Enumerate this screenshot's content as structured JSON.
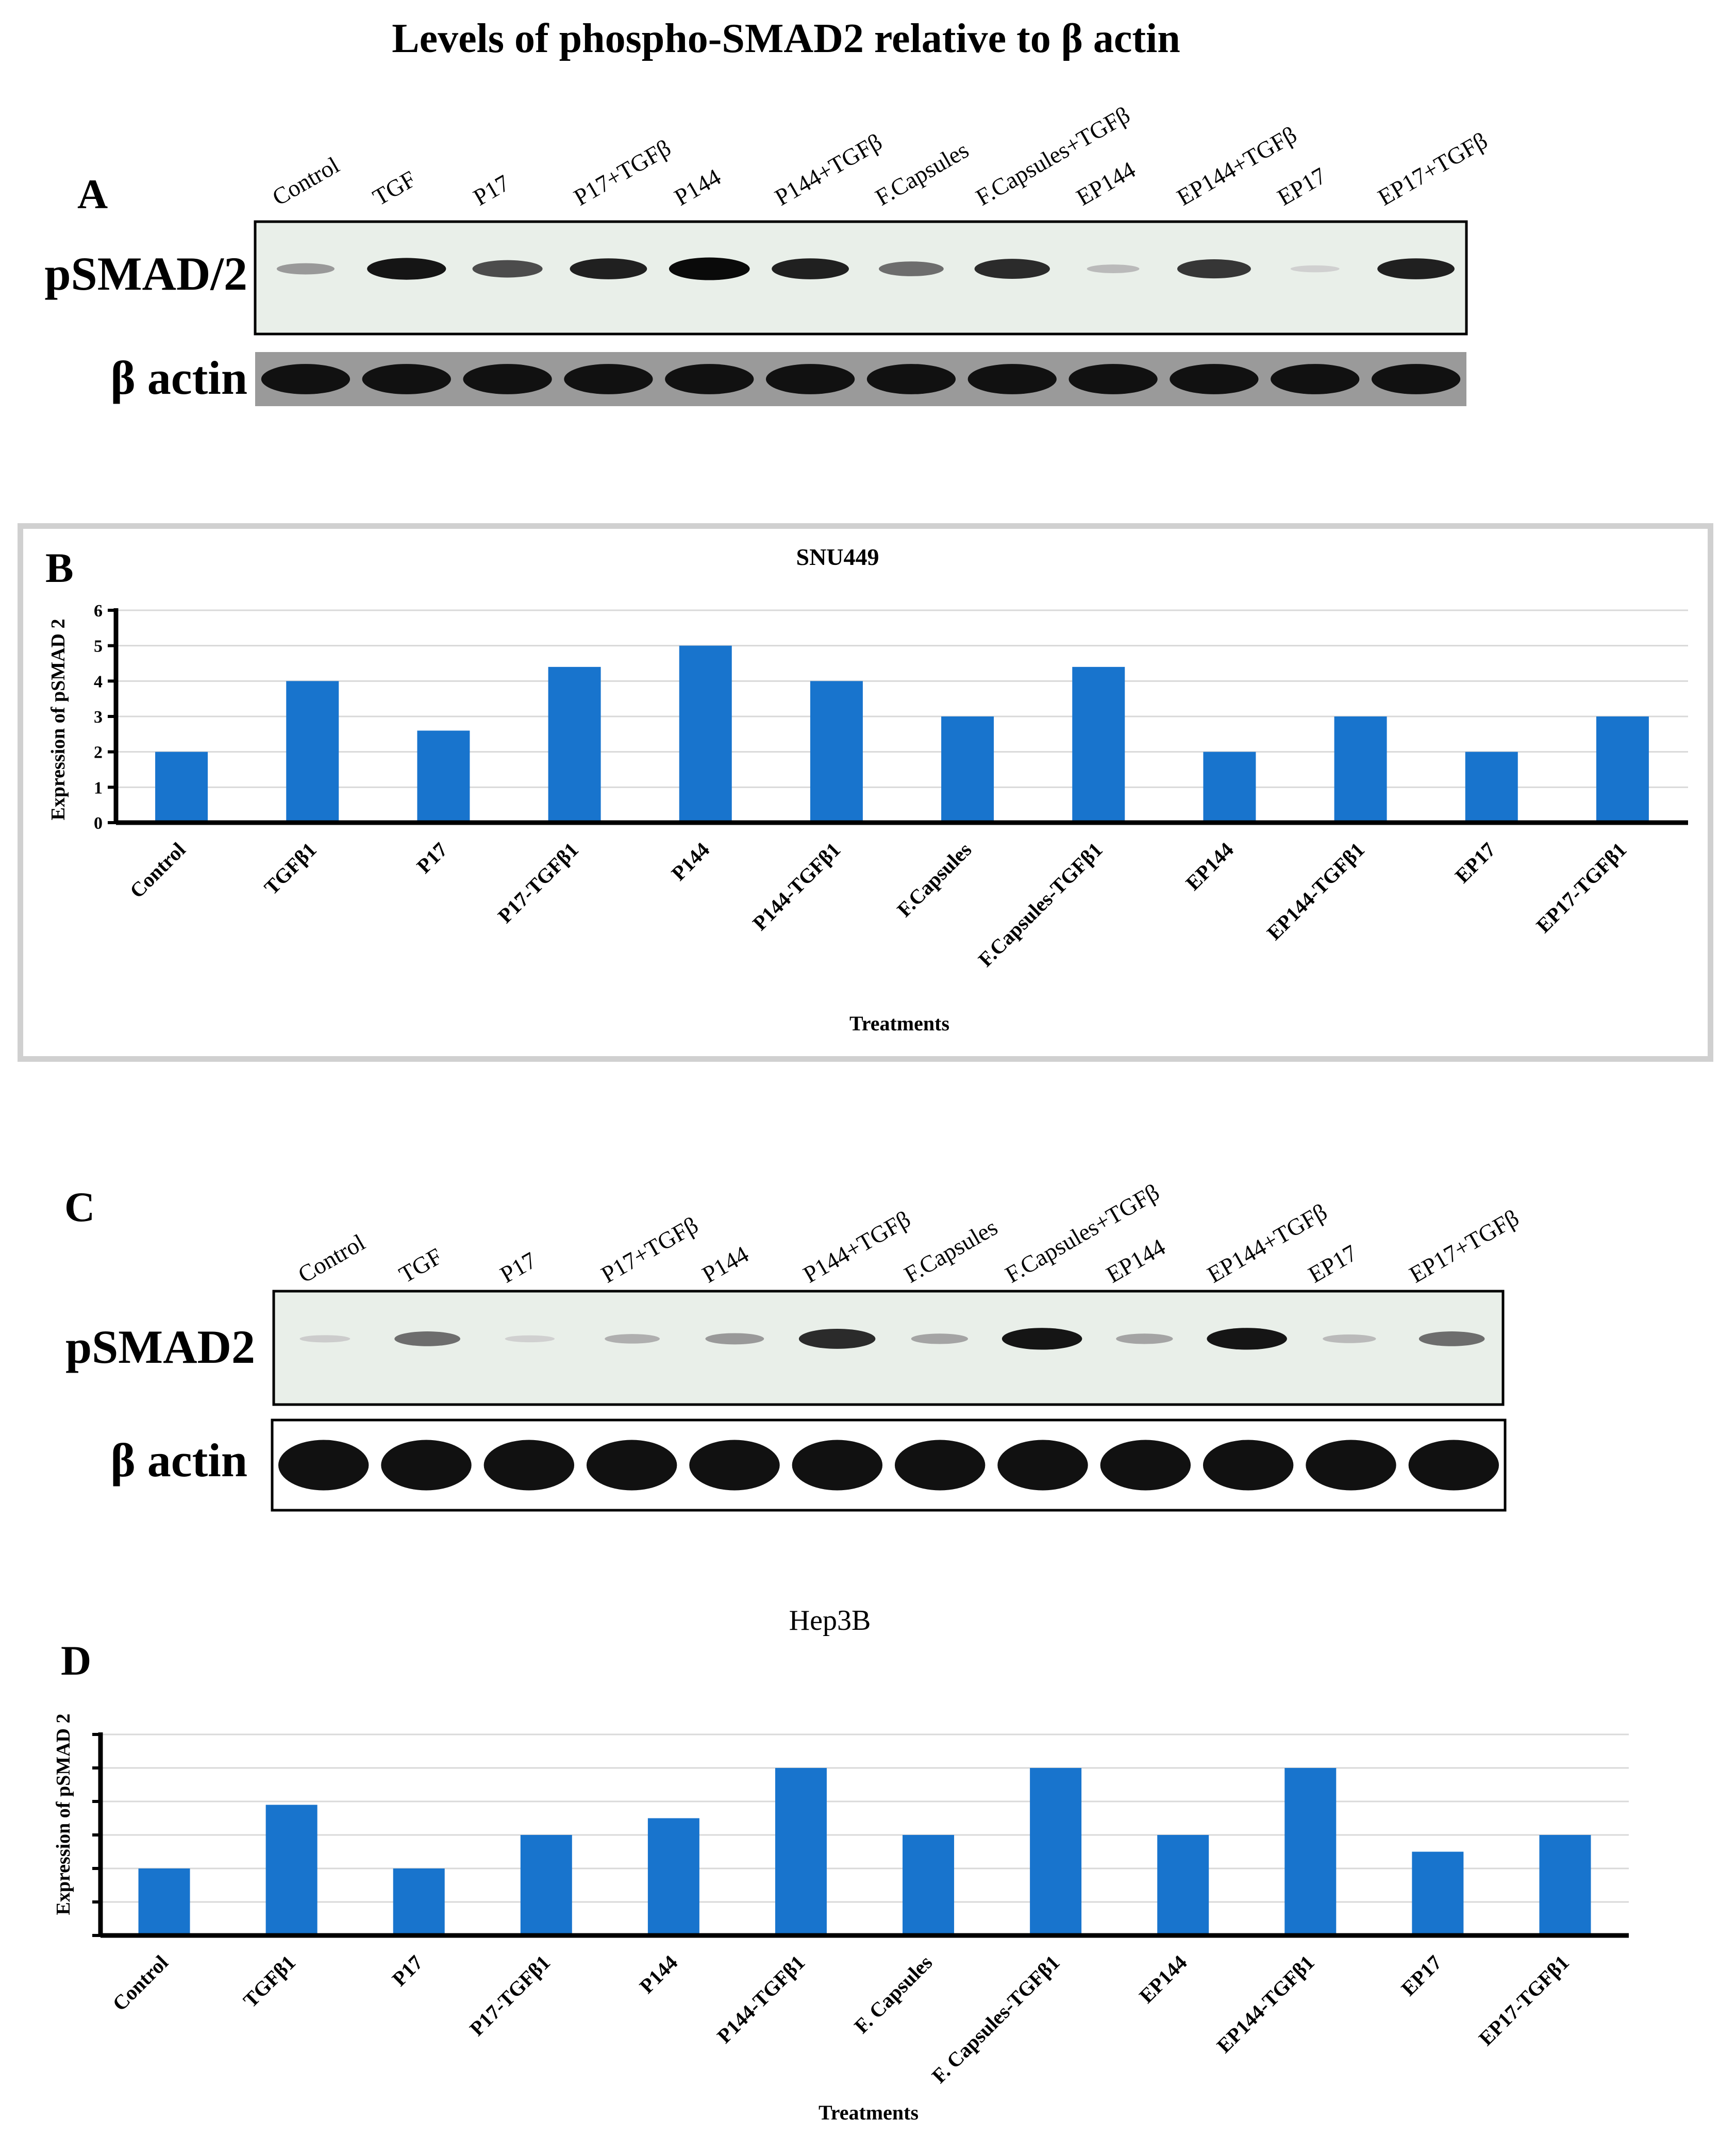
{
  "figure_title": "Levels of phospho-SMAD2 relative to β actin",
  "colors": {
    "bar": "#1874CD",
    "gridline": "#d9d9d9",
    "axis": "#000000",
    "blot_bg": "#e9efe9",
    "band": "#111111"
  },
  "panel_a": {
    "letter": "A",
    "lane_labels": [
      "Control",
      "TGF",
      "P17",
      "P17+TGFβ",
      "P144",
      "P144+TGFβ",
      "F.Capsules",
      "F.Capsules+TGFβ",
      "EP144",
      "EP144+TGFβ",
      "EP17",
      "EP17+TGFβ"
    ],
    "row_labels": {
      "target": "pSMAD/2",
      "loading": "β actin"
    },
    "band_intensity": [
      0.35,
      0.95,
      0.7,
      0.9,
      1.0,
      0.9,
      0.55,
      0.85,
      0.2,
      0.8,
      0.1,
      0.9
    ]
  },
  "panel_c": {
    "letter": "C",
    "lane_labels": [
      "Control",
      "TGF",
      "P17",
      "P17+TGFβ",
      "P144",
      "P144+TGFβ",
      "F.Capsules",
      "F.Capsules+TGFβ",
      "EP144",
      "EP144+TGFβ",
      "EP17",
      "EP17+TGFβ"
    ],
    "row_labels": {
      "target": "pSMAD2",
      "loading": "β actin"
    },
    "band_intensity": [
      0.12,
      0.55,
      0.1,
      0.25,
      0.35,
      0.85,
      0.3,
      0.95,
      0.3,
      0.95,
      0.2,
      0.55
    ]
  },
  "chart_data": [
    {
      "panel": "B",
      "type": "bar",
      "title": "SNU449",
      "xlabel": "Treatments",
      "ylabel": "Expression of pSMAD 2",
      "ylim": [
        0,
        6
      ],
      "yticks": [
        "0",
        "1",
        "2",
        "3",
        "4",
        "5",
        "6"
      ],
      "grid": true,
      "categories": [
        "Control",
        "TGFβ1",
        "P17",
        "P17-TGFβ1",
        "P144",
        "P144-TGFβ1",
        "F.Capsules",
        "F.Capsules-TGFβ1",
        "EP144",
        "EP144-TGFβ1",
        "EP17",
        "EP17-TGFβ1"
      ],
      "values": [
        2,
        4,
        2.6,
        4.4,
        5,
        4,
        3,
        4.4,
        2,
        3,
        2,
        3
      ]
    },
    {
      "panel": "D",
      "type": "bar",
      "title": "Hep3B",
      "xlabel": "Treatments",
      "ylabel": "Expression of pSMAD 2",
      "ylim": [
        0,
        6
      ],
      "grid": true,
      "categories": [
        "Control",
        "TGFβ1",
        "P17",
        "P17-TGFβ1",
        "P144",
        "P144-TGFβ1",
        "F. Capsules",
        "F. Capsules-TGFβ1",
        "EP144",
        "EP144-TGFβ1",
        "EP17",
        "EP17-TGFβ1"
      ],
      "values": [
        2,
        3.9,
        2,
        3,
        3.5,
        5,
        3,
        5,
        3,
        5,
        2.5,
        3
      ]
    }
  ]
}
